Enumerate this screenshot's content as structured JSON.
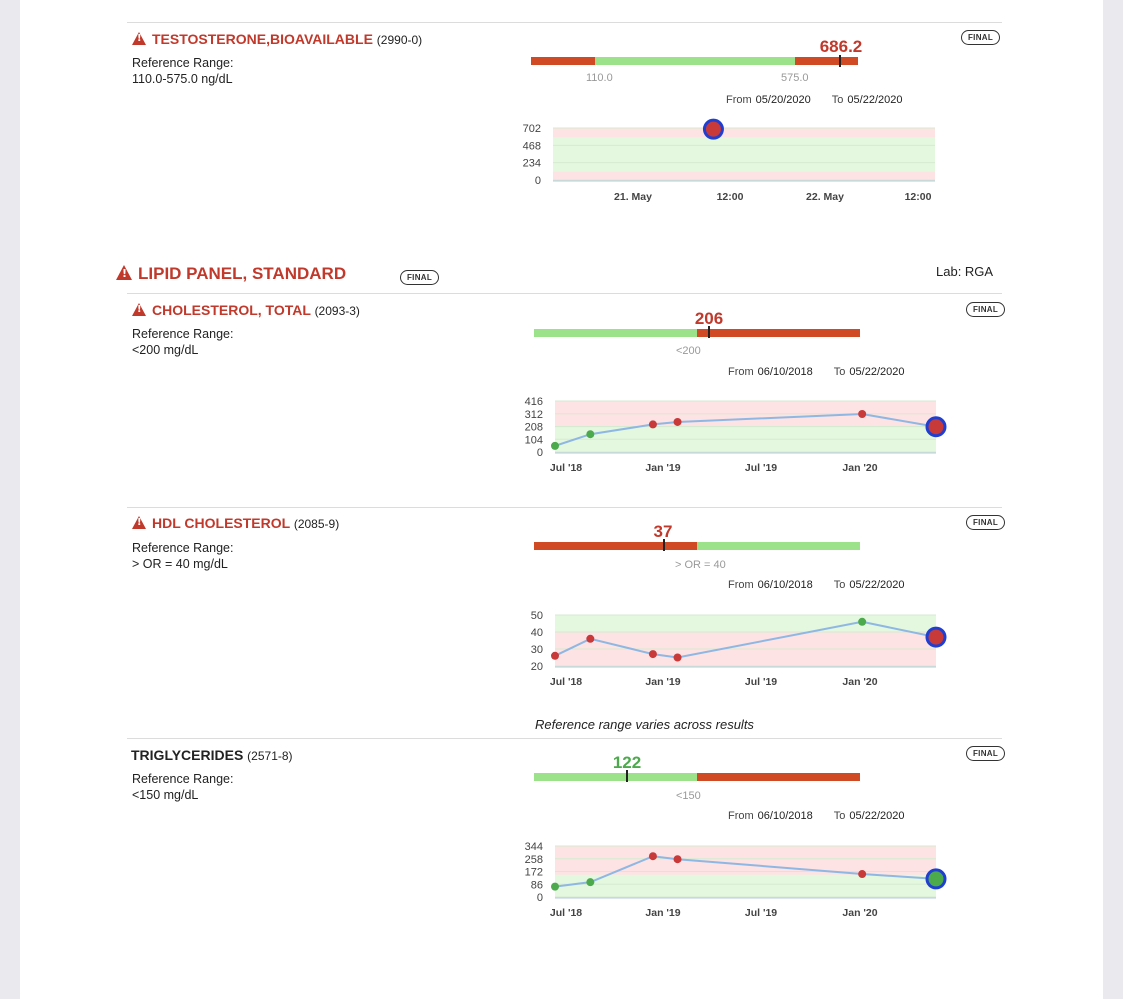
{
  "colors": {
    "abnormal": "#c0392b",
    "normal_green": "#9be28b",
    "bar_red": "#d04a23",
    "line": "#8fb7e3",
    "ring": "#1f3fd1",
    "point_red": "#c8393a",
    "point_green": "#4caa4c"
  },
  "testosterone": {
    "name": "TESTOSTERONE,BIOAVAILABLE",
    "code": "(2990-0)",
    "ref_label": "Reference Range:",
    "ref_value": "110.0-575.0 ng/dL",
    "badge": "FINAL",
    "value": "686.2",
    "low": "110.0",
    "high": "575.0",
    "from_label": "From",
    "from": "05/20/2020",
    "to_label": "To",
    "to": "05/22/2020"
  },
  "lipid_panel": {
    "title": "LIPID PANEL, STANDARD",
    "badge": "FINAL",
    "lab": "Lab: RGA"
  },
  "cholesterol": {
    "name": "CHOLESTEROL, TOTAL",
    "code": "(2093-3)",
    "ref_label": "Reference Range:",
    "ref_value": "<200 mg/dL",
    "badge": "FINAL",
    "value": "206",
    "threshold": "<200",
    "from_label": "From",
    "from": "06/10/2018",
    "to_label": "To",
    "to": "05/22/2020"
  },
  "hdl": {
    "name": "HDL CHOLESTEROL",
    "code": "(2085-9)",
    "ref_label": "Reference Range:",
    "ref_value": "> OR = 40 mg/dL",
    "badge": "FINAL",
    "value": "37",
    "threshold": "> OR = 40",
    "from_label": "From",
    "from": "06/10/2018",
    "to_label": "To",
    "to": "05/22/2020"
  },
  "varies_note": "Reference range varies across results",
  "triglycerides": {
    "name": "TRIGLYCERIDES",
    "code": "(2571-8)",
    "ref_label": "Reference Range:",
    "ref_value": "<150 mg/dL",
    "badge": "FINAL",
    "value": "122",
    "threshold": "<150",
    "from_label": "From",
    "from": "06/10/2018",
    "to_label": "To",
    "to": "05/22/2020"
  },
  "chart_data": [
    {
      "type": "scatter",
      "id": "testosterone",
      "y_ticks": [
        "702",
        "468",
        "234",
        "0"
      ],
      "x_ticks": [
        "21. May",
        "12:00",
        "22. May",
        "12:00"
      ],
      "ylim": [
        0,
        702
      ],
      "normal_range": [
        110,
        575
      ],
      "points": [
        {
          "x": "2020-05-21 09:00",
          "y": 686.2,
          "abnormal": true,
          "latest": true
        }
      ]
    },
    {
      "type": "line",
      "id": "cholesterol",
      "y_ticks": [
        "416",
        "312",
        "208",
        "104",
        "0"
      ],
      "x_ticks": [
        "Jul '18",
        "Jan '19",
        "Jul '19",
        "Jan '20"
      ],
      "ylim": [
        0,
        416
      ],
      "normal_range": [
        0,
        200
      ],
      "points": [
        {
          "x": "2018-06-10",
          "y": 50,
          "abnormal": false
        },
        {
          "x": "2018-08-15",
          "y": 145,
          "abnormal": false
        },
        {
          "x": "2018-12-10",
          "y": 225,
          "abnormal": true
        },
        {
          "x": "2019-01-25",
          "y": 245,
          "abnormal": true
        },
        {
          "x": "2020-01-05",
          "y": 310,
          "abnormal": true
        },
        {
          "x": "2020-05-22",
          "y": 206,
          "abnormal": true,
          "latest": true
        }
      ]
    },
    {
      "type": "line",
      "id": "hdl",
      "y_ticks": [
        "50",
        "40",
        "30",
        "20"
      ],
      "x_ticks": [
        "Jul '18",
        "Jan '19",
        "Jul '19",
        "Jan '20"
      ],
      "ylim": [
        20,
        50
      ],
      "normal_range": [
        40,
        50
      ],
      "points": [
        {
          "x": "2018-06-10",
          "y": 26,
          "abnormal": true
        },
        {
          "x": "2018-08-15",
          "y": 36,
          "abnormal": true
        },
        {
          "x": "2018-12-10",
          "y": 27,
          "abnormal": true
        },
        {
          "x": "2019-01-25",
          "y": 25,
          "abnormal": true
        },
        {
          "x": "2020-01-05",
          "y": 46,
          "abnormal": false
        },
        {
          "x": "2020-05-22",
          "y": 37,
          "abnormal": true,
          "latest": true
        }
      ]
    },
    {
      "type": "line",
      "id": "triglycerides",
      "y_ticks": [
        "344",
        "258",
        "172",
        "86",
        "0"
      ],
      "x_ticks": [
        "Jul '18",
        "Jan '19",
        "Jul '19",
        "Jan '20"
      ],
      "ylim": [
        0,
        344
      ],
      "normal_range": [
        0,
        150
      ],
      "points": [
        {
          "x": "2018-06-10",
          "y": 70,
          "abnormal": false
        },
        {
          "x": "2018-08-15",
          "y": 100,
          "abnormal": false
        },
        {
          "x": "2018-12-10",
          "y": 275,
          "abnormal": true
        },
        {
          "x": "2019-01-25",
          "y": 255,
          "abnormal": true
        },
        {
          "x": "2020-01-05",
          "y": 155,
          "abnormal": true
        },
        {
          "x": "2020-05-22",
          "y": 122,
          "abnormal": false,
          "latest": true
        }
      ]
    }
  ]
}
